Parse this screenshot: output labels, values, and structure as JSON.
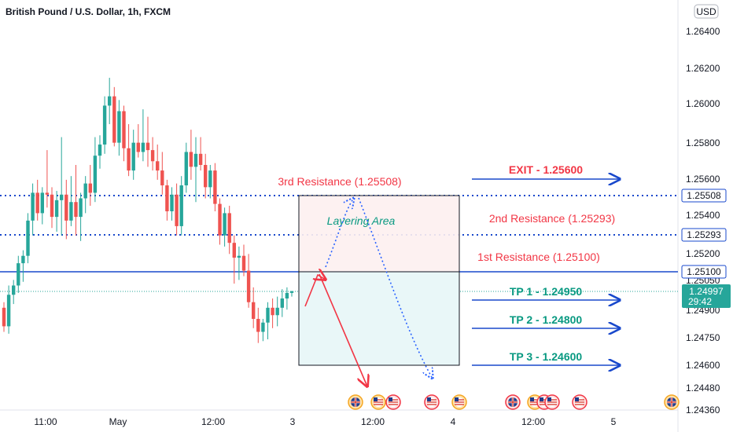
{
  "chart_data": {
    "type": "candlestick",
    "title": "British Pound / U.S. Dollar, 1h, FXCM",
    "currency": "USD",
    "colors": {
      "up": "#26a69a",
      "down": "#ef5350",
      "resistance": "#f23645",
      "target": "#089981",
      "arrow_blue": "#1848cc",
      "dotted_blue": "#2962ff"
    },
    "y_ticks": [
      "1.26400",
      "1.26200",
      "1.26000",
      "1.25800",
      "1.25600",
      "1.25400",
      "1.25200",
      "1.25050",
      "1.24900",
      "1.24750",
      "1.24600",
      "1.24480",
      "1.24360"
    ],
    "x_ticks": [
      "11:00",
      "May",
      "12:00",
      "3",
      "12:00",
      "4",
      "12:00",
      "5"
    ],
    "price_labels": [
      {
        "text": "1.25508",
        "style": "dotted"
      },
      {
        "text": "1.25293",
        "style": "dotted"
      },
      {
        "text": "1.25100",
        "style": "solid"
      },
      {
        "text": "1.24997",
        "style": "current",
        "countdown": "29:42"
      }
    ],
    "annotations": {
      "r3": "3rd Resistance (1.25508)",
      "r2": "2nd Resistance (1.25293)",
      "r1": "1st Resistance (1.25100)",
      "layering": "Layering Area",
      "exit": "EXIT - 1.25600",
      "tp1": "TP 1 - 1.24950",
      "tp2": "TP 2 - 1.24800",
      "tp3": "TP 3 - 1.24600"
    },
    "candles": [
      {
        "o": 1.2491,
        "h": 1.2494,
        "l": 1.2478,
        "c": 1.2481
      },
      {
        "o": 1.2481,
        "h": 1.2503,
        "l": 1.2477,
        "c": 1.2498
      },
      {
        "o": 1.2498,
        "h": 1.2506,
        "l": 1.2493,
        "c": 1.2503
      },
      {
        "o": 1.2503,
        "h": 1.2519,
        "l": 1.2499,
        "c": 1.2515
      },
      {
        "o": 1.2515,
        "h": 1.2522,
        "l": 1.2505,
        "c": 1.2519
      },
      {
        "o": 1.2519,
        "h": 1.2542,
        "l": 1.2515,
        "c": 1.2538
      },
      {
        "o": 1.2538,
        "h": 1.2558,
        "l": 1.253,
        "c": 1.2553
      },
      {
        "o": 1.2553,
        "h": 1.256,
        "l": 1.2538,
        "c": 1.2542
      },
      {
        "o": 1.2542,
        "h": 1.2556,
        "l": 1.2536,
        "c": 1.2553
      },
      {
        "o": 1.2553,
        "h": 1.2576,
        "l": 1.2545,
        "c": 1.2552
      },
      {
        "o": 1.2552,
        "h": 1.2556,
        "l": 1.2534,
        "c": 1.254
      },
      {
        "o": 1.254,
        "h": 1.2554,
        "l": 1.2532,
        "c": 1.2549
      },
      {
        "o": 1.2549,
        "h": 1.2583,
        "l": 1.253,
        "c": 1.2552
      },
      {
        "o": 1.2552,
        "h": 1.256,
        "l": 1.2528,
        "c": 1.2538
      },
      {
        "o": 1.2538,
        "h": 1.2562,
        "l": 1.2535,
        "c": 1.2548
      },
      {
        "o": 1.2548,
        "h": 1.2568,
        "l": 1.253,
        "c": 1.254
      },
      {
        "o": 1.254,
        "h": 1.2553,
        "l": 1.2527,
        "c": 1.255
      },
      {
        "o": 1.255,
        "h": 1.2562,
        "l": 1.2542,
        "c": 1.2558
      },
      {
        "o": 1.2558,
        "h": 1.2568,
        "l": 1.2546,
        "c": 1.2553
      },
      {
        "o": 1.2553,
        "h": 1.2583,
        "l": 1.2548,
        "c": 1.2573
      },
      {
        "o": 1.2573,
        "h": 1.2584,
        "l": 1.2566,
        "c": 1.2579
      },
      {
        "o": 1.2579,
        "h": 1.2605,
        "l": 1.2574,
        "c": 1.26
      },
      {
        "o": 1.26,
        "h": 1.2615,
        "l": 1.259,
        "c": 1.2605
      },
      {
        "o": 1.2605,
        "h": 1.261,
        "l": 1.2578,
        "c": 1.258
      },
      {
        "o": 1.258,
        "h": 1.2603,
        "l": 1.2573,
        "c": 1.2597
      },
      {
        "o": 1.2597,
        "h": 1.26,
        "l": 1.257,
        "c": 1.2577
      },
      {
        "o": 1.2577,
        "h": 1.259,
        "l": 1.2562,
        "c": 1.2565
      },
      {
        "o": 1.2565,
        "h": 1.2587,
        "l": 1.256,
        "c": 1.258
      },
      {
        "o": 1.258,
        "h": 1.259,
        "l": 1.2572,
        "c": 1.2575
      },
      {
        "o": 1.2575,
        "h": 1.2598,
        "l": 1.257,
        "c": 1.258
      },
      {
        "o": 1.258,
        "h": 1.2594,
        "l": 1.2567,
        "c": 1.2576
      },
      {
        "o": 1.2576,
        "h": 1.2583,
        "l": 1.2565,
        "c": 1.257
      },
      {
        "o": 1.257,
        "h": 1.2579,
        "l": 1.256,
        "c": 1.2565
      },
      {
        "o": 1.2565,
        "h": 1.2575,
        "l": 1.2552,
        "c": 1.2557
      },
      {
        "o": 1.2557,
        "h": 1.256,
        "l": 1.2538,
        "c": 1.2543
      },
      {
        "o": 1.2543,
        "h": 1.2556,
        "l": 1.2538,
        "c": 1.2552
      },
      {
        "o": 1.2552,
        "h": 1.2558,
        "l": 1.253,
        "c": 1.2535
      },
      {
        "o": 1.2535,
        "h": 1.2562,
        "l": 1.253,
        "c": 1.2557
      },
      {
        "o": 1.2557,
        "h": 1.258,
        "l": 1.2553,
        "c": 1.2575
      },
      {
        "o": 1.2575,
        "h": 1.2587,
        "l": 1.256,
        "c": 1.2567
      },
      {
        "o": 1.2567,
        "h": 1.2583,
        "l": 1.2548,
        "c": 1.2574
      },
      {
        "o": 1.2574,
        "h": 1.2583,
        "l": 1.2565,
        "c": 1.2568
      },
      {
        "o": 1.2568,
        "h": 1.2574,
        "l": 1.255,
        "c": 1.2556
      },
      {
        "o": 1.2556,
        "h": 1.2568,
        "l": 1.255,
        "c": 1.2565
      },
      {
        "o": 1.2565,
        "h": 1.2569,
        "l": 1.2543,
        "c": 1.2547
      },
      {
        "o": 1.2547,
        "h": 1.255,
        "l": 1.2525,
        "c": 1.253
      },
      {
        "o": 1.253,
        "h": 1.2545,
        "l": 1.2524,
        "c": 1.2542
      },
      {
        "o": 1.2542,
        "h": 1.2546,
        "l": 1.252,
        "c": 1.2526
      },
      {
        "o": 1.2526,
        "h": 1.253,
        "l": 1.2504,
        "c": 1.2518
      },
      {
        "o": 1.2518,
        "h": 1.2524,
        "l": 1.2506,
        "c": 1.2519
      },
      {
        "o": 1.2519,
        "h": 1.2525,
        "l": 1.2508,
        "c": 1.2511
      },
      {
        "o": 1.2511,
        "h": 1.252,
        "l": 1.2491,
        "c": 1.2494
      },
      {
        "o": 1.2494,
        "h": 1.2502,
        "l": 1.248,
        "c": 1.2485
      },
      {
        "o": 1.2485,
        "h": 1.2491,
        "l": 1.2472,
        "c": 1.2478
      },
      {
        "o": 1.2478,
        "h": 1.2485,
        "l": 1.2473,
        "c": 1.2483
      },
      {
        "o": 1.2483,
        "h": 1.2494,
        "l": 1.2474,
        "c": 1.2491
      },
      {
        "o": 1.2491,
        "h": 1.2496,
        "l": 1.248,
        "c": 1.2487
      },
      {
        "o": 1.2487,
        "h": 1.2497,
        "l": 1.2481,
        "c": 1.2491
      },
      {
        "o": 1.2491,
        "h": 1.2501,
        "l": 1.2486,
        "c": 1.2496
      },
      {
        "o": 1.2496,
        "h": 1.2502,
        "l": 1.249,
        "c": 1.2499
      },
      {
        "o": 1.2499,
        "h": 1.25,
        "l": 1.2497,
        "c": 1.25
      }
    ]
  }
}
